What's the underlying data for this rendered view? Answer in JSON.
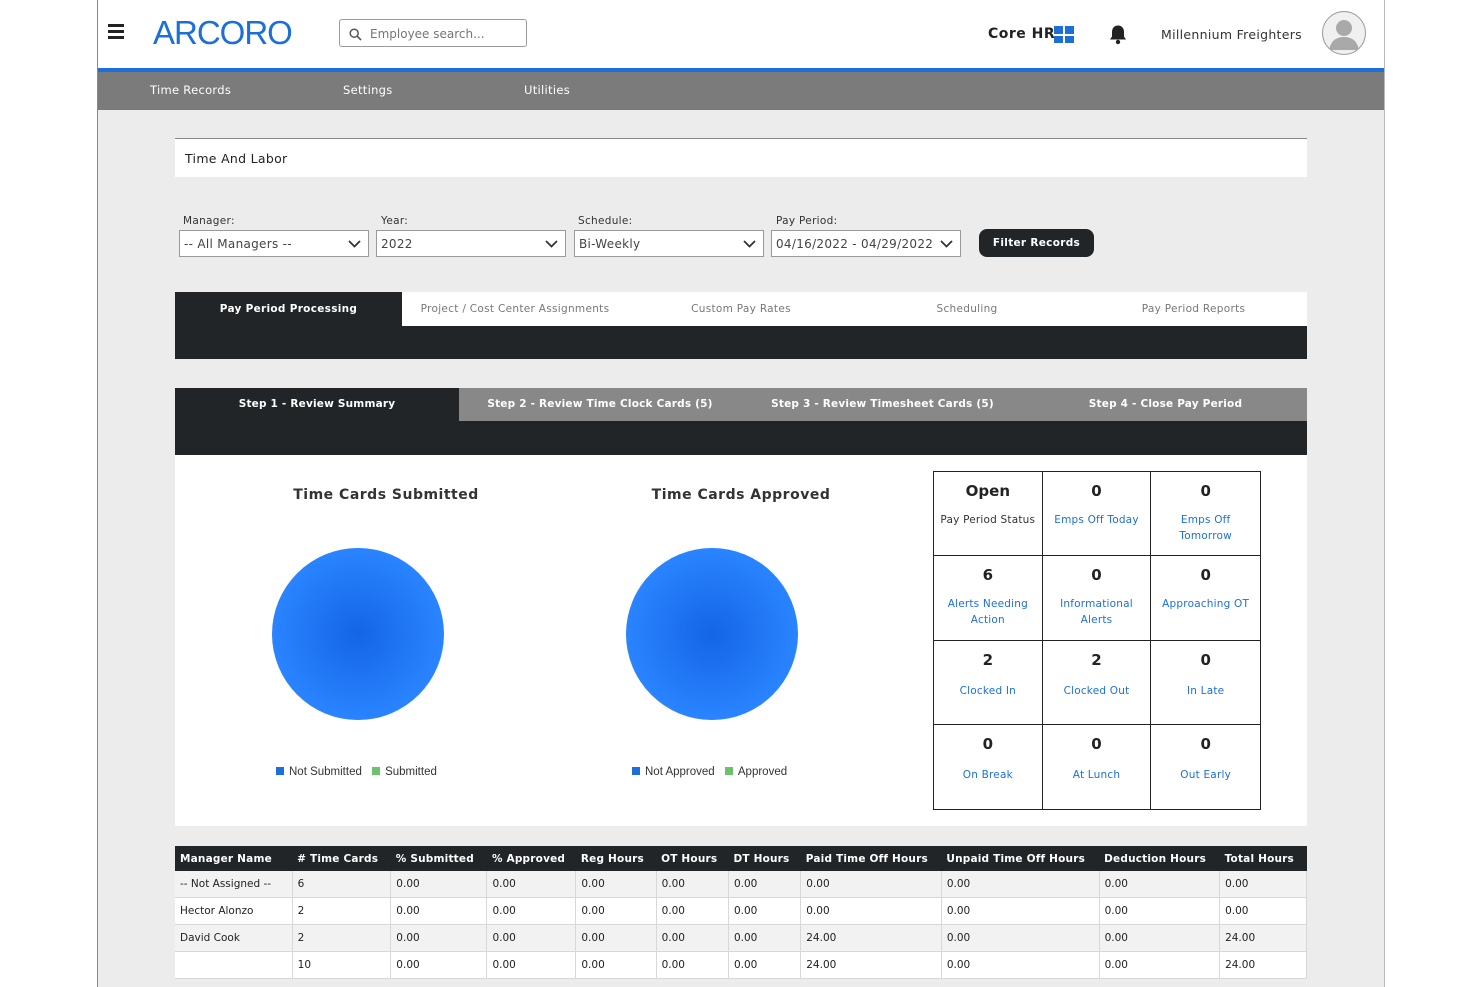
{
  "header": {
    "logo": "ARCORO",
    "search_placeholder": "Employee search...",
    "app_name": "Core HR",
    "company": "Millennium Freighters"
  },
  "nav": {
    "items": [
      "Time Records",
      "Settings",
      "Utilities"
    ]
  },
  "page": {
    "title": "Time And Labor"
  },
  "filters": {
    "manager": {
      "label": "Manager:",
      "value": "-- All Managers --"
    },
    "year": {
      "label": "Year:",
      "value": "2022"
    },
    "schedule": {
      "label": "Schedule:",
      "value": "Bi-Weekly"
    },
    "pay_period": {
      "label": "Pay Period:",
      "value": "04/16/2022 - 04/29/2022"
    },
    "button": "Filter Records"
  },
  "tabs": [
    "Pay Period Processing",
    "Project / Cost Center Assignments",
    "Custom Pay Rates",
    "Scheduling",
    "Pay Period Reports"
  ],
  "steps": [
    "Step 1 - Review Summary",
    "Step 2 - Review Time Clock Cards (5)",
    "Step 3 - Review Timesheet Cards (5)",
    "Step 4 - Close Pay Period"
  ],
  "colors": {
    "accent": "#1c6fd8",
    "dark": "#222527",
    "nav_gray": "#7b7b7b",
    "legend_blue": "#1c6fd8",
    "legend_green": "#6cc26c"
  },
  "chart_data": [
    {
      "type": "pie",
      "title": "Time Cards Submitted",
      "categories": [
        "Not Submitted",
        "Submitted"
      ],
      "values": [
        10,
        0
      ]
    },
    {
      "type": "pie",
      "title": "Time Cards Approved",
      "categories": [
        "Not Approved",
        "Approved"
      ],
      "values": [
        10,
        0
      ]
    }
  ],
  "stats": [
    {
      "value": "Open",
      "label": "Pay Period Status",
      "link": false
    },
    {
      "value": "0",
      "label": "Emps Off Today",
      "link": true
    },
    {
      "value": "0",
      "label": "Emps Off Tomorrow",
      "link": true
    },
    {
      "value": "6",
      "label": "Alerts Needing Action",
      "link": true
    },
    {
      "value": "0",
      "label": "Informational Alerts",
      "link": true
    },
    {
      "value": "0",
      "label": "Approaching OT",
      "link": true
    },
    {
      "value": "2",
      "label": "Clocked In",
      "link": true
    },
    {
      "value": "2",
      "label": "Clocked Out",
      "link": true
    },
    {
      "value": "0",
      "label": "In Late",
      "link": true
    },
    {
      "value": "0",
      "label": "On Break",
      "link": true
    },
    {
      "value": "0",
      "label": "At Lunch",
      "link": true
    },
    {
      "value": "0",
      "label": "Out Early",
      "link": true
    }
  ],
  "table": {
    "columns": [
      "Manager Name",
      "# Time Cards",
      "% Submitted",
      "% Approved",
      "Reg Hours",
      "OT Hours",
      "DT Hours",
      "Paid Time Off Hours",
      "Unpaid Time Off Hours",
      "Deduction Hours",
      "Total Hours"
    ],
    "rows": [
      [
        "-- Not Assigned --",
        "6",
        "0.00",
        "0.00",
        "0.00",
        "0.00",
        "0.00",
        "0.00",
        "0.00",
        "0.00",
        "0.00"
      ],
      [
        "Hector Alonzo",
        "2",
        "0.00",
        "0.00",
        "0.00",
        "0.00",
        "0.00",
        "0.00",
        "0.00",
        "0.00",
        "0.00"
      ],
      [
        "David Cook",
        "2",
        "0.00",
        "0.00",
        "0.00",
        "0.00",
        "0.00",
        "24.00",
        "0.00",
        "0.00",
        "24.00"
      ],
      [
        "",
        "10",
        "0.00",
        "0.00",
        "0.00",
        "0.00",
        "0.00",
        "24.00",
        "0.00",
        "0.00",
        "24.00"
      ]
    ]
  }
}
